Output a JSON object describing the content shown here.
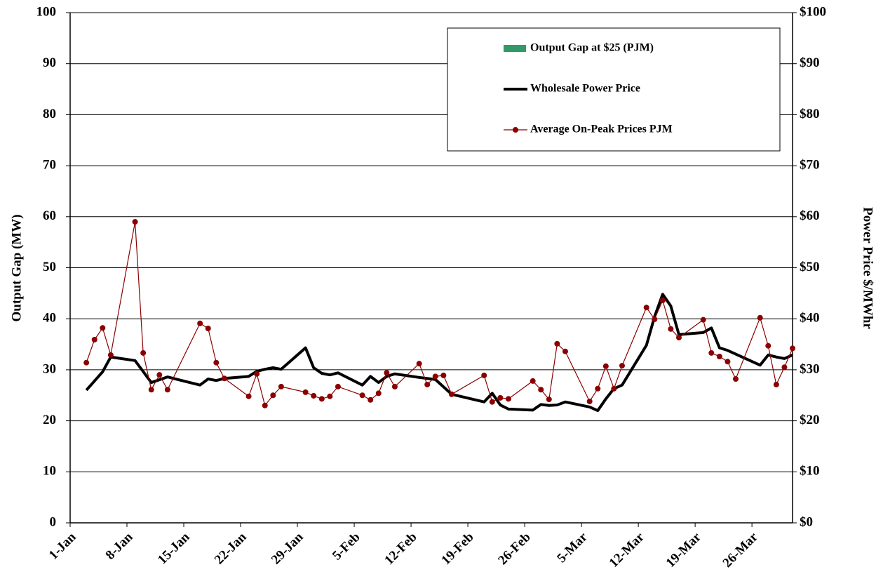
{
  "chart_data": {
    "type": "line",
    "ylabel": "Output Gap (MW)",
    "y2label": "Power Price $/MWhr",
    "xlim": [
      "1-Jan",
      "31-Mar"
    ],
    "xticks": [
      "1-Jan",
      "8-Jan",
      "15-Jan",
      "22-Jan",
      "29-Jan",
      "5-Feb",
      "12-Feb",
      "19-Feb",
      "26-Feb",
      "5-Mar",
      "12-Mar",
      "19-Mar",
      "26-Mar"
    ],
    "ylim": [
      0,
      100
    ],
    "yticks": [
      0,
      10,
      20,
      30,
      40,
      50,
      60,
      70,
      80,
      90,
      100
    ],
    "y2lim": [
      0,
      100
    ],
    "y2ticks": [
      {
        "value": 0,
        "label": "$0"
      },
      {
        "value": 10,
        "label": "$10"
      },
      {
        "value": 20,
        "label": "$20"
      },
      {
        "value": 30,
        "label": "$30"
      },
      {
        "value": 40,
        "label": "$40"
      },
      {
        "value": 50,
        "label": "$50"
      },
      {
        "value": 60,
        "label": "$60"
      },
      {
        "value": 70,
        "label": "$70"
      },
      {
        "value": 80,
        "label": "$80"
      },
      {
        "value": 90,
        "label": "$90"
      },
      {
        "value": 100,
        "label": "$100"
      }
    ],
    "grid": true,
    "legend": "upper right",
    "series": [
      {
        "name": "Output Gap at $25 (PJM)",
        "type": "bar",
        "color": "#339966"
      },
      {
        "name": "Wholesale Power Price",
        "type": "line",
        "color": "#000000",
        "axis": "y2",
        "x": [
          "3-Jan",
          "5-Jan",
          "6-Jan",
          "9-Jan",
          "11-Jan",
          "13-Jan",
          "17-Jan",
          "18-Jan",
          "19-Jan",
          "20-Jan",
          "23-Jan",
          "24-Jan",
          "25-Jan",
          "26-Jan",
          "27-Jan",
          "30-Jan",
          "31-Jan",
          "1-Feb",
          "2-Feb",
          "3-Feb",
          "6-Feb",
          "7-Feb",
          "8-Feb",
          "9-Feb",
          "10-Feb",
          "13-Feb",
          "15-Feb",
          "17-Feb",
          "21-Feb",
          "22-Feb",
          "23-Feb",
          "24-Feb",
          "27-Feb",
          "28-Feb",
          "1-Mar",
          "2-Mar",
          "3-Mar",
          "6-Mar",
          "7-Mar",
          "8-Mar",
          "9-Mar",
          "10-Mar",
          "13-Mar",
          "14-Mar",
          "15-Mar",
          "16-Mar",
          "17-Mar",
          "20-Mar",
          "21-Mar",
          "22-Mar",
          "23-Mar",
          "27-Mar",
          "28-Mar",
          "29-Mar",
          "30-Mar",
          "31-Mar"
        ],
        "values": [
          26.0,
          29.6,
          32.5,
          31.8,
          27.5,
          28.6,
          27.0,
          28.2,
          27.9,
          28.3,
          28.7,
          29.7,
          30.1,
          30.4,
          30.1,
          34.3,
          30.4,
          29.3,
          29.0,
          29.4,
          27.0,
          28.7,
          27.5,
          28.7,
          29.2,
          28.5,
          28.1,
          25.2,
          23.7,
          25.4,
          23.1,
          22.3,
          22.1,
          23.2,
          23.0,
          23.1,
          23.7,
          22.7,
          22.0,
          24.3,
          26.3,
          27.0,
          34.8,
          40.4,
          44.8,
          42.5,
          36.9,
          37.3,
          38.2,
          34.3,
          33.8,
          30.9,
          32.9,
          32.5,
          32.2,
          32.9
        ]
      },
      {
        "name": "Average On-Peak Prices PJM",
        "type": "line",
        "marker": "circle",
        "color": "#8b0000",
        "axis": "y2",
        "x": [
          "3-Jan",
          "4-Jan",
          "5-Jan",
          "6-Jan",
          "9-Jan",
          "10-Jan",
          "11-Jan",
          "12-Jan",
          "13-Jan",
          "17-Jan",
          "18-Jan",
          "19-Jan",
          "20-Jan",
          "23-Jan",
          "24-Jan",
          "25-Jan",
          "26-Jan",
          "27-Jan",
          "30-Jan",
          "31-Jan",
          "1-Feb",
          "2-Feb",
          "3-Feb",
          "6-Feb",
          "7-Feb",
          "8-Feb",
          "9-Feb",
          "10-Feb",
          "13-Feb",
          "14-Feb",
          "15-Feb",
          "16-Feb",
          "17-Feb",
          "21-Feb",
          "22-Feb",
          "23-Feb",
          "24-Feb",
          "27-Feb",
          "28-Feb",
          "1-Mar",
          "2-Mar",
          "3-Mar",
          "6-Mar",
          "7-Mar",
          "8-Mar",
          "9-Mar",
          "10-Mar",
          "13-Mar",
          "14-Mar",
          "15-Mar",
          "16-Mar",
          "17-Mar",
          "20-Mar",
          "21-Mar",
          "22-Mar",
          "23-Mar",
          "24-Mar",
          "27-Mar",
          "28-Mar",
          "29-Mar",
          "30-Mar",
          "31-Mar"
        ],
        "values": [
          31.4,
          35.9,
          38.2,
          32.9,
          59.0,
          33.3,
          26.1,
          29.0,
          26.1,
          39.1,
          38.1,
          31.4,
          28.3,
          24.8,
          29.2,
          23.0,
          25.0,
          26.7,
          25.6,
          24.9,
          24.3,
          24.8,
          26.7,
          25.0,
          24.1,
          25.4,
          29.4,
          26.7,
          31.2,
          27.1,
          28.7,
          28.9,
          25.2,
          28.9,
          23.7,
          24.5,
          24.3,
          27.8,
          26.1,
          24.2,
          35.1,
          33.6,
          23.8,
          26.3,
          30.7,
          26.3,
          30.8,
          42.2,
          39.9,
          43.6,
          38.0,
          36.3,
          39.8,
          33.3,
          32.6,
          31.6,
          28.2,
          40.2,
          34.7,
          27.1,
          30.5,
          34.2
        ]
      }
    ]
  }
}
